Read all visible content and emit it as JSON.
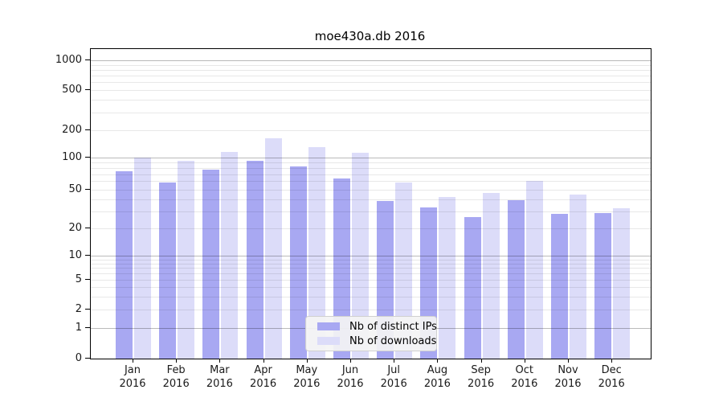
{
  "title": "moe430a.db 2016",
  "chart_data": {
    "type": "bar",
    "title": "moe430a.db 2016",
    "categories": [
      "Jan",
      "Feb",
      "Mar",
      "Apr",
      "May",
      "Jun",
      "Jul",
      "Aug",
      "Sep",
      "Oct",
      "Nov",
      "Dec"
    ],
    "year_label": "2016",
    "series": [
      {
        "name": "Nb of distinct IPs",
        "color": "#a8a8f2",
        "values": [
          74,
          58,
          77,
          94,
          83,
          64,
          38,
          33,
          26,
          39,
          28,
          29
        ]
      },
      {
        "name": "Nb of downloads",
        "color": "#dcdcf9",
        "values": [
          101,
          94,
          116,
          164,
          130,
          114,
          58,
          42,
          46,
          61,
          45,
          32
        ]
      }
    ],
    "xlabel": "",
    "ylabel": "",
    "yscale": "symlog",
    "ytick_labels": [
      "1000",
      "500",
      "200",
      "100",
      "50",
      "20",
      "10",
      "5",
      "2",
      "1",
      "0"
    ],
    "yticks": [
      1000,
      500,
      200,
      100,
      50,
      20,
      10,
      5,
      2,
      1,
      0
    ],
    "ylim": [
      0,
      1400
    ],
    "grid": "on",
    "legend_position": "lower center"
  },
  "legend": {
    "items": [
      {
        "label": "Nb of distinct IPs"
      },
      {
        "label": "Nb of downloads"
      }
    ]
  }
}
